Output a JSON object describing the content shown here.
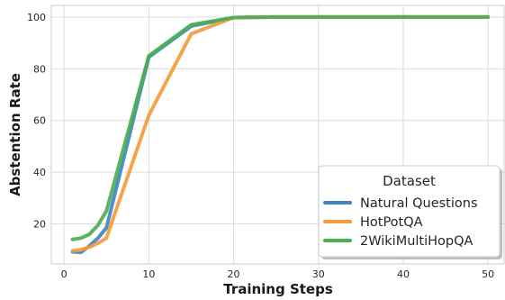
{
  "chart_data": {
    "type": "line",
    "title": "",
    "xlabel": "Training Steps",
    "ylabel": "Abstention Rate",
    "xlim": [
      -1.5,
      52
    ],
    "ylim": [
      4.5,
      104.5
    ],
    "x_ticks": [
      0,
      10,
      20,
      30,
      40,
      50
    ],
    "y_ticks": [
      20,
      40,
      60,
      80,
      100
    ],
    "grid": true,
    "legend": {
      "title": "Dataset",
      "placement": "lower-right"
    },
    "series": [
      {
        "name": "Natural Questions",
        "color": "#3d85c6",
        "x": [
          1,
          2,
          3,
          4,
          5,
          10,
          15,
          20,
          25,
          30,
          35,
          40,
          45,
          50
        ],
        "y": [
          9.2,
          9.0,
          11.5,
          14.5,
          18.5,
          84.5,
          96.5,
          99.8,
          100,
          100,
          100,
          100,
          100,
          100
        ]
      },
      {
        "name": "HotPotQA",
        "color": "#f59c3c",
        "x": [
          1,
          2,
          3,
          4,
          5,
          10,
          15,
          20,
          25,
          30,
          35,
          40,
          45,
          50
        ],
        "y": [
          9.5,
          10.0,
          11.0,
          12.5,
          14.5,
          62.0,
          93.5,
          99.8,
          100,
          100,
          100,
          100,
          100,
          100
        ]
      },
      {
        "name": "2WikiMultiHopQA",
        "color": "#4caf50",
        "x": [
          1,
          2,
          3,
          4,
          5,
          10,
          15,
          20,
          25,
          30,
          35,
          40,
          45,
          50
        ],
        "y": [
          14.0,
          14.5,
          16.0,
          19.5,
          25.0,
          85.0,
          97.0,
          99.8,
          100,
          100,
          100,
          100,
          100,
          100
        ]
      }
    ]
  }
}
